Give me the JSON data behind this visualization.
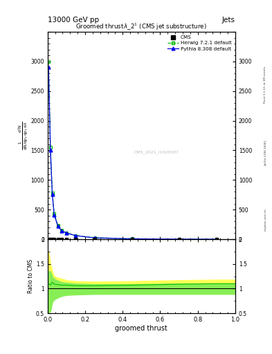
{
  "title": "Groomed thrust λ_2¹ (CMS jet substructure)",
  "header_left": "13000 GeV pp",
  "header_right": "Jets",
  "xlabel": "groomed thrust",
  "ylabel_ratio": "Ratio to CMS",
  "watermark": "CMS_2021_I1920187",
  "rivet_label": "Rivet 3.1.10, ≥ 3M events",
  "arxiv_label": "[arXiv:1306.3436]",
  "mcplots_label": "mcplots.cern.ch",
  "herwig_x": [
    0.005,
    0.015,
    0.025,
    0.035,
    0.055,
    0.075,
    0.1,
    0.15,
    0.25,
    0.45,
    0.7,
    0.9
  ],
  "herwig_y": [
    3000,
    1550,
    780,
    430,
    230,
    150,
    110,
    62,
    25,
    7,
    1.5,
    0.3
  ],
  "pythia_x": [
    0.005,
    0.015,
    0.025,
    0.035,
    0.055,
    0.075,
    0.1,
    0.15,
    0.25,
    0.45,
    0.7,
    0.9
  ],
  "pythia_y": [
    2900,
    1500,
    760,
    410,
    220,
    145,
    105,
    60,
    24,
    6.5,
    1.3,
    0.25
  ],
  "cms_x": [
    0.005,
    0.015,
    0.025,
    0.035,
    0.055,
    0.075,
    0.1,
    0.15,
    0.25,
    0.45,
    0.7,
    0.9
  ],
  "cms_y": [
    0.0,
    0.0,
    0.0,
    0.0,
    0.0,
    0.0,
    0.0,
    0.0,
    0.0,
    0.0,
    0.0,
    0.0
  ],
  "herwig_ratio_x": [
    0.0,
    0.005,
    0.015,
    0.025,
    0.035,
    0.055,
    0.075,
    0.1,
    0.15,
    0.25,
    0.45,
    0.7,
    0.9,
    1.0
  ],
  "herwig_ratio_central": [
    1.1,
    1.1,
    1.07,
    1.13,
    1.09,
    1.08,
    1.07,
    1.07,
    1.06,
    1.06,
    1.07,
    1.09,
    1.1,
    1.1
  ],
  "herwig_ratio_upper": [
    1.75,
    1.75,
    1.5,
    1.35,
    1.25,
    1.22,
    1.2,
    1.17,
    1.15,
    1.14,
    1.15,
    1.17,
    1.18,
    1.18
  ],
  "herwig_ratio_lower": [
    0.65,
    0.65,
    0.65,
    0.82,
    0.85,
    0.88,
    0.9,
    0.91,
    0.92,
    0.93,
    0.93,
    0.94,
    0.95,
    0.95
  ],
  "pythia_ratio_x": [
    0.0,
    0.005,
    0.015,
    0.025,
    0.035,
    0.055,
    0.075,
    0.1,
    0.15,
    0.25,
    0.45,
    0.7,
    0.9,
    1.0
  ],
  "pythia_ratio_central": [
    1.0,
    1.0,
    1.0,
    1.0,
    1.0,
    1.0,
    1.0,
    1.0,
    1.0,
    1.0,
    1.0,
    1.0,
    1.0,
    1.0
  ],
  "pythia_ratio_upper": [
    1.35,
    1.35,
    1.35,
    1.25,
    1.2,
    1.16,
    1.13,
    1.12,
    1.1,
    1.09,
    1.09,
    1.1,
    1.1,
    1.1
  ],
  "pythia_ratio_lower": [
    0.5,
    0.5,
    0.55,
    0.73,
    0.78,
    0.82,
    0.85,
    0.87,
    0.88,
    0.89,
    0.89,
    0.89,
    0.89,
    0.89
  ],
  "cms_color": "#000000",
  "herwig_color": "#00bb00",
  "pythia_color": "#0000ee",
  "yellow_band": "#ffff55",
  "green_band": "#88ee55",
  "ylim_main": [
    0,
    3500
  ],
  "ylim_ratio": [
    0.5,
    2.0
  ],
  "xlim": [
    0.0,
    1.0
  ],
  "yticks_main": [
    0,
    500,
    1000,
    1500,
    2000,
    2500,
    3000,
    3500
  ],
  "ytick_labels_main": [
    "0",
    "500",
    "1000",
    "1500",
    "2000",
    "2500",
    "3000",
    ""
  ],
  "yticks_ratio": [
    0.5,
    1.0,
    1.5,
    2.0
  ],
  "ytick_labels_ratio": [
    "0.5",
    "1",
    "1.5",
    "2"
  ]
}
